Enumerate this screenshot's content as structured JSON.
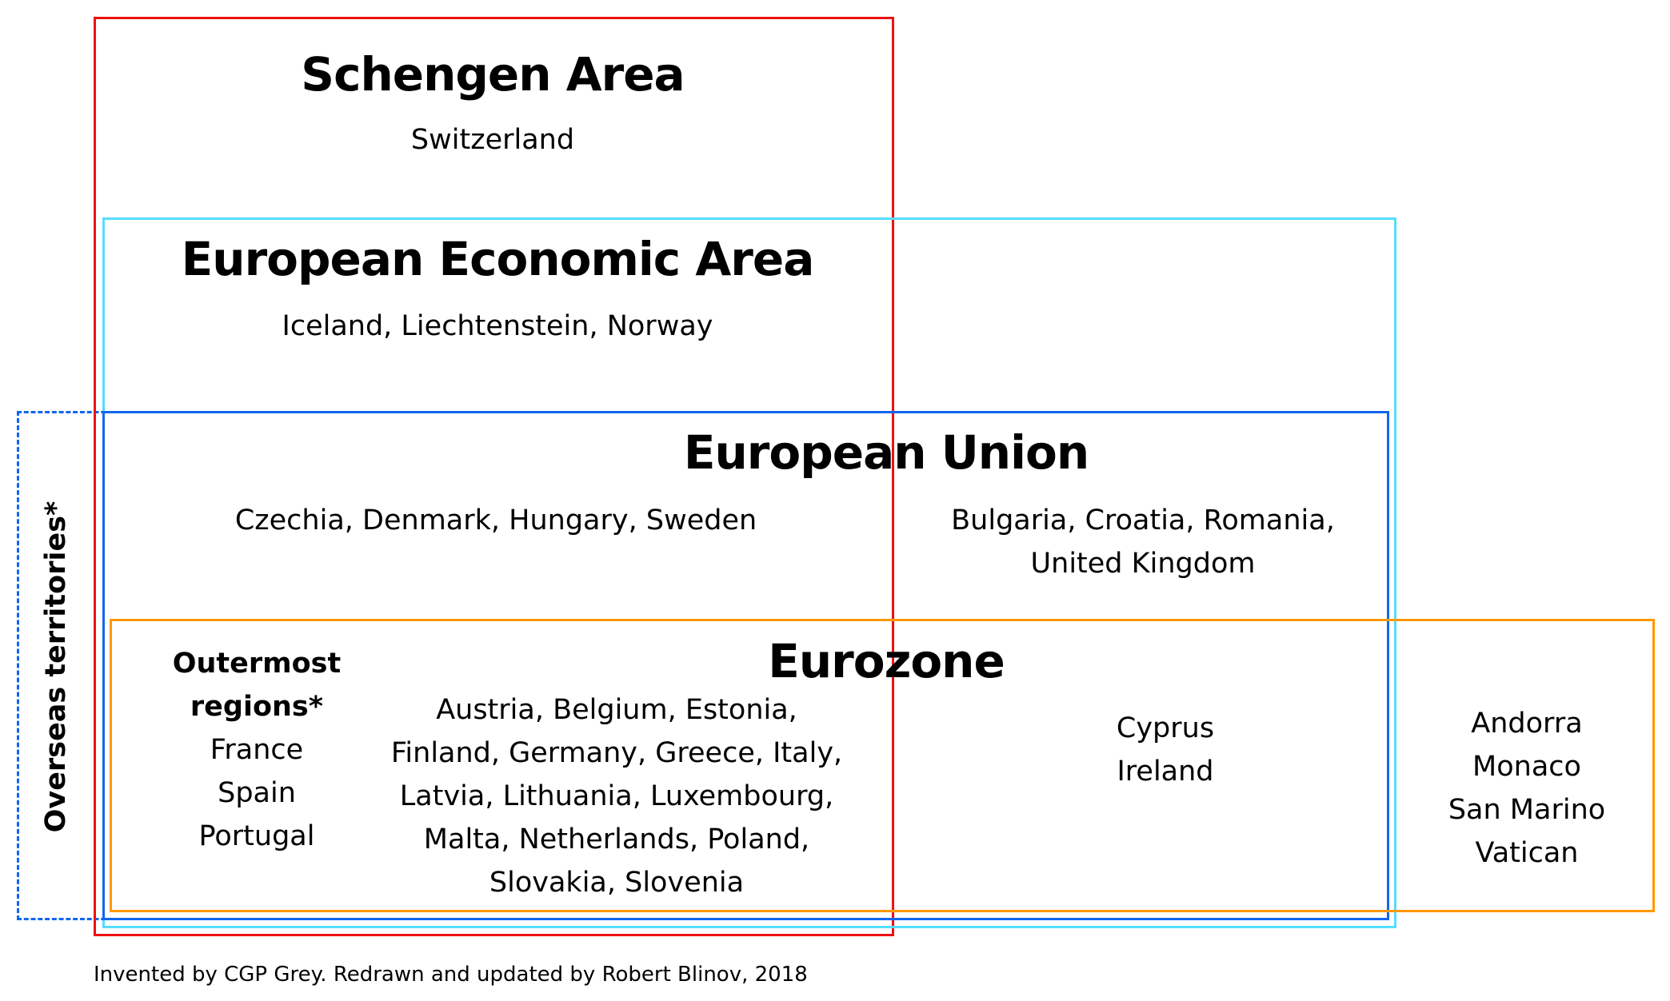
{
  "colors": {
    "schengen": "#ee1111",
    "eea": "#55ddff",
    "eu": "#1166ee",
    "eurozone": "#ff9900",
    "overseas": "#1166ee"
  },
  "schengen": {
    "title": "Schengen Area",
    "members": "Switzerland"
  },
  "eea": {
    "title": "European Economic Area",
    "members": "Iceland, Liechtenstein, Norway"
  },
  "eu": {
    "title": "European Union",
    "schengen_members": "Czechia, Denmark, Hungary, Sweden",
    "non_schengen_members": [
      "Bulgaria, Croatia, Romania,",
      "United Kingdom"
    ]
  },
  "eurozone": {
    "title": "Eurozone",
    "outermost": {
      "heading": [
        "Outermost",
        "regions*"
      ],
      "countries": [
        "France",
        "Spain",
        "Portugal"
      ]
    },
    "schengen_members": [
      "Austria, Belgium, Estonia,",
      "Finland, Germany, Greece, Italy,",
      "Latvia, Lithuania, Luxembourg,",
      "Malta, Netherlands, Poland,",
      "Slovakia, Slovenia"
    ],
    "non_schengen_members": [
      "Cyprus",
      "Ireland"
    ],
    "non_eu_members": [
      "Andorra",
      "Monaco",
      "San Marino",
      "Vatican"
    ]
  },
  "overseas": {
    "label": "Overseas territories*"
  },
  "footer": "Invented by CGP Grey. Redrawn and updated by Robert Blinov, 2018"
}
